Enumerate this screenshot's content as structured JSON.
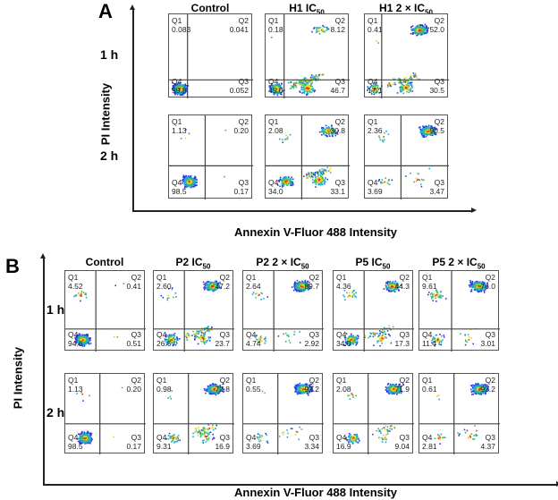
{
  "chart_data": [
    {
      "type": "scatter",
      "panel": "A",
      "xlabel": "Annexin V-Fluor 488 Intensity",
      "ylabel": "PI Intensity",
      "columns": [
        {
          "name": "Control",
          "sub": "",
          "suffix": ""
        },
        {
          "name": "H1 IC",
          "sub": "50",
          "suffix": ""
        },
        {
          "name": "H1 2 × IC",
          "sub": "50",
          "suffix": ""
        }
      ],
      "rows": [
        "1 h",
        "2 h"
      ],
      "quadrant_labels": [
        "Q1",
        "Q2",
        "Q3",
        "Q4"
      ],
      "values": [
        [
          {
            "Q1": "0.083",
            "Q2": "0.041",
            "Q3": "0.052",
            "Q4": "99.8"
          },
          {
            "Q1": "0.18",
            "Q2": "8.12",
            "Q3": "46.7",
            "Q4": "45.0"
          },
          {
            "Q1": "0.41",
            "Q2": "52.0",
            "Q3": "30.5",
            "Q4": "17.1"
          }
        ],
        [
          {
            "Q1": "1.13",
            "Q2": "0.20",
            "Q3": "0.17",
            "Q4": "98.5"
          },
          {
            "Q1": "2.08",
            "Q2": "30.8",
            "Q3": "33.1",
            "Q4": "34.0"
          },
          {
            "Q1": "2.36",
            "Q2": "90.5",
            "Q3": "3.47",
            "Q4": "3.69"
          }
        ]
      ]
    },
    {
      "type": "scatter",
      "panel": "B",
      "xlabel": "Annexin V-Fluor 488 Intensity",
      "ylabel": "PI Intensity",
      "columns": [
        {
          "name": "Control",
          "sub": "",
          "suffix": ""
        },
        {
          "name": "P2 IC",
          "sub": "50",
          "suffix": ""
        },
        {
          "name": "P2 2 × IC",
          "sub": "50",
          "suffix": ""
        },
        {
          "name": "P5 IC",
          "sub": "50",
          "suffix": ""
        },
        {
          "name": "P5 2 × IC",
          "sub": "50",
          "suffix": ""
        }
      ],
      "rows": [
        "1 h",
        "2 h"
      ],
      "quadrant_labels": [
        "Q1",
        "Q2",
        "Q3",
        "Q4"
      ],
      "values": [
        [
          {
            "Q1": "4.52",
            "Q2": "0.41",
            "Q3": "0.51",
            "Q4": "94.6"
          },
          {
            "Q1": "2.60",
            "Q2": "47.2",
            "Q3": "23.7",
            "Q4": "26.5"
          },
          {
            "Q1": "2.64",
            "Q2": "89.7",
            "Q3": "2.92",
            "Q4": "4.74"
          },
          {
            "Q1": "4.36",
            "Q2": "44.3",
            "Q3": "17.3",
            "Q4": "34.0"
          },
          {
            "Q1": "9.61",
            "Q2": "76.0",
            "Q3": "3.01",
            "Q4": "11.4"
          }
        ],
        [
          {
            "Q1": "1.13",
            "Q2": "0.20",
            "Q3": "0.17",
            "Q4": "98.5"
          },
          {
            "Q1": "0.98",
            "Q2": "72.8",
            "Q3": "16.9",
            "Q4": "9.31"
          },
          {
            "Q1": "0.55",
            "Q2": "92.2",
            "Q3": "3.34",
            "Q4": "3.69"
          },
          {
            "Q1": "2.08",
            "Q2": "71.9",
            "Q3": "9.04",
            "Q4": "16.9"
          },
          {
            "Q1": "0.61",
            "Q2": "92.2",
            "Q3": "4.37",
            "Q4": "2.81"
          }
        ]
      ]
    }
  ],
  "colors": {
    "axis": "#222222",
    "gate": "#444444",
    "density_low": "#2a3cd8",
    "density_high": "#e03020"
  }
}
